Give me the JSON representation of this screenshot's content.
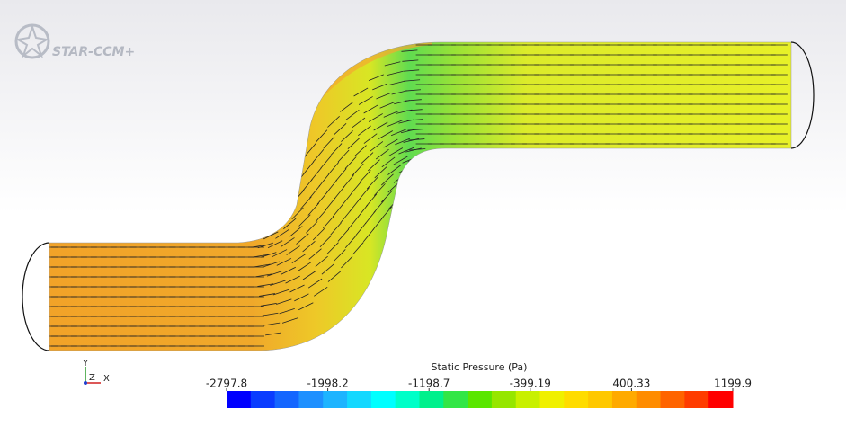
{
  "logo": {
    "text": "STAR-CCM+"
  },
  "triad": {
    "y": "Y",
    "z": "Z",
    "x": "X"
  },
  "colorbar": {
    "title": "Static Pressure (Pa)",
    "min": -2797.8,
    "max": 1199.9,
    "ticks": [
      -2797.8,
      -1998.2,
      -1198.7,
      -399.19,
      400.33,
      1199.9
    ],
    "colors": [
      "#0000ff",
      "#0a3cff",
      "#1466ff",
      "#1e90ff",
      "#1eb4ff",
      "#14d8ff",
      "#00ffff",
      "#00ffc8",
      "#00f08c",
      "#32e646",
      "#5ae600",
      "#96e600",
      "#c8f000",
      "#f0f000",
      "#ffdc00",
      "#ffc800",
      "#ffaa00",
      "#ff8c00",
      "#ff6400",
      "#ff3c00",
      "#ff0000"
    ]
  }
}
